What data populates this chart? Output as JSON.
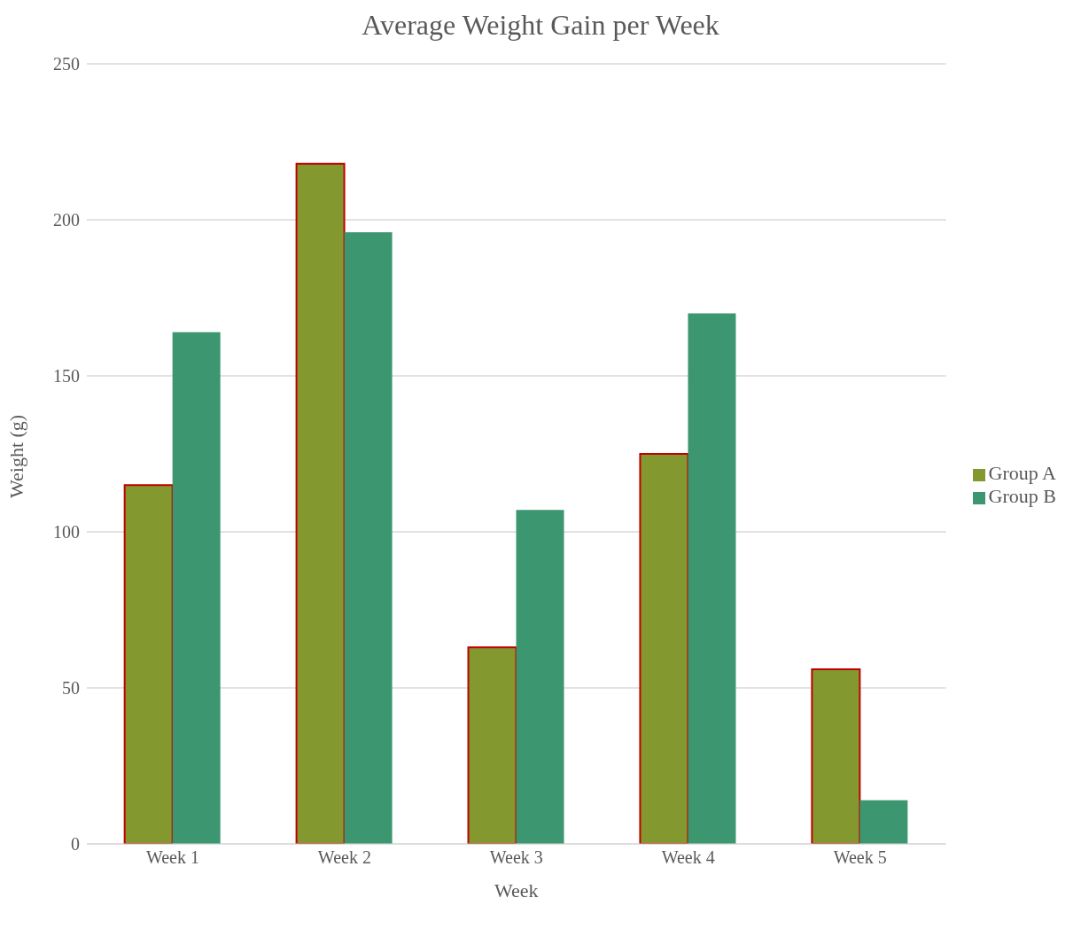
{
  "chart_data": {
    "type": "bar",
    "title": "Average Weight Gain per Week",
    "xlabel": "Week",
    "ylabel": "Weight (g)",
    "categories": [
      "Week 1",
      "Week 2",
      "Week 3",
      "Week 4",
      "Week 5"
    ],
    "series": [
      {
        "name": "Group A",
        "color": "#83992f",
        "values": [
          115,
          218,
          63,
          125,
          56
        ]
      },
      {
        "name": "Group B",
        "color": "#3c9670",
        "values": [
          164,
          196,
          107,
          170,
          14
        ]
      }
    ],
    "ylim": [
      0,
      250
    ],
    "yticks": [
      0,
      50,
      100,
      150,
      200,
      250
    ],
    "grid": "y",
    "legend": "right"
  }
}
